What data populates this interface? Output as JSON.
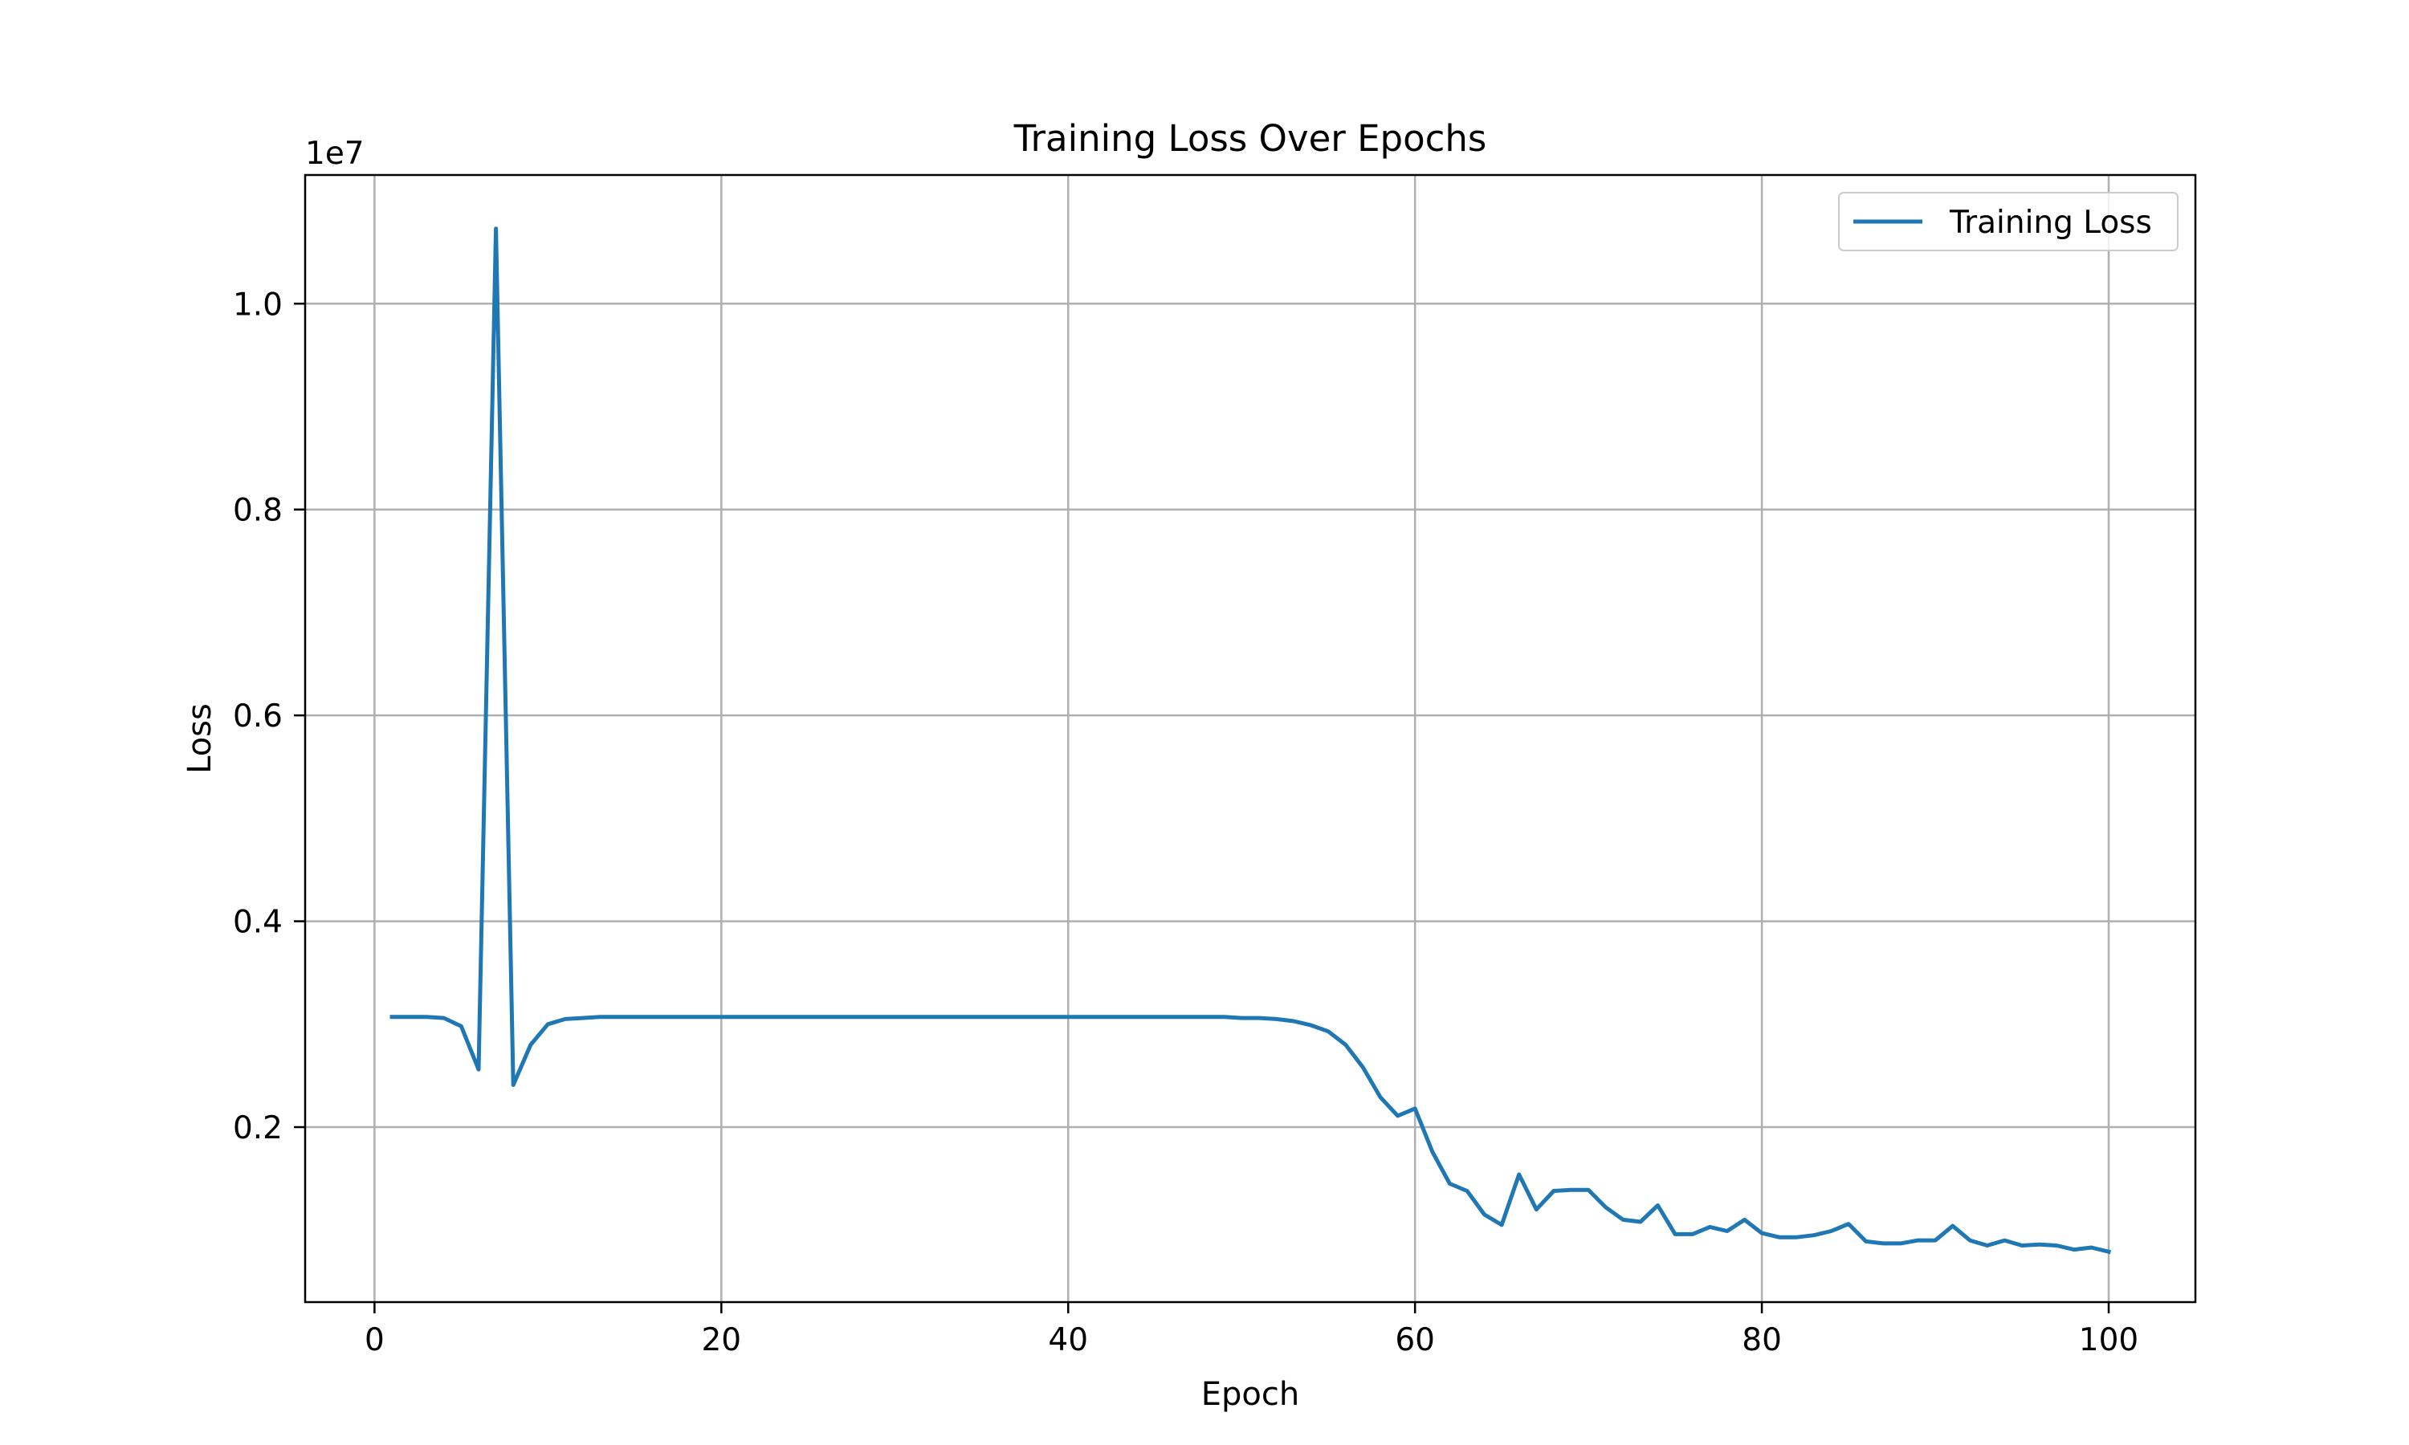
{
  "chart_data": {
    "type": "line",
    "title": "Training Loss Over Epochs",
    "xlabel": "Epoch",
    "ylabel": "Loss",
    "y_offset_label": "1e7",
    "xlim": [
      -4,
      105
    ],
    "ylim": [
      0.03,
      1.125
    ],
    "x_ticks": [
      0,
      20,
      40,
      60,
      80,
      100
    ],
    "x_tick_labels": [
      "0",
      "20",
      "40",
      "60",
      "80",
      "100"
    ],
    "y_ticks": [
      0.2,
      0.4,
      0.6,
      0.8,
      1.0
    ],
    "y_tick_labels": [
      "0.2",
      "0.4",
      "0.6",
      "0.8",
      "1.0"
    ],
    "grid": true,
    "legend": {
      "placement": "top-right",
      "entries": [
        "Training Loss"
      ]
    },
    "colors": {
      "series": "#1f77b4",
      "grid": "#b0b0b0",
      "axes": "#000000"
    },
    "series": [
      {
        "name": "Training Loss",
        "x": [
          1,
          2,
          3,
          4,
          5,
          6,
          7,
          8,
          9,
          10,
          11,
          12,
          13,
          14,
          15,
          16,
          17,
          18,
          19,
          20,
          21,
          22,
          23,
          24,
          25,
          26,
          27,
          28,
          29,
          30,
          31,
          32,
          33,
          34,
          35,
          36,
          37,
          38,
          39,
          40,
          41,
          42,
          43,
          44,
          45,
          46,
          47,
          48,
          49,
          50,
          51,
          52,
          53,
          54,
          55,
          56,
          57,
          58,
          59,
          60,
          61,
          62,
          63,
          64,
          65,
          66,
          67,
          68,
          69,
          70,
          71,
          72,
          73,
          74,
          75,
          76,
          77,
          78,
          79,
          80,
          81,
          82,
          83,
          84,
          85,
          86,
          87,
          88,
          89,
          90,
          91,
          92,
          93,
          94,
          95,
          96,
          97,
          98,
          99,
          100
        ],
        "values": [
          0.307,
          0.307,
          0.307,
          0.306,
          0.298,
          0.256,
          1.073,
          0.241,
          0.28,
          0.3,
          0.305,
          0.306,
          0.307,
          0.307,
          0.307,
          0.307,
          0.307,
          0.307,
          0.307,
          0.307,
          0.307,
          0.307,
          0.307,
          0.307,
          0.307,
          0.307,
          0.307,
          0.307,
          0.307,
          0.307,
          0.307,
          0.307,
          0.307,
          0.307,
          0.307,
          0.307,
          0.307,
          0.307,
          0.307,
          0.307,
          0.307,
          0.307,
          0.307,
          0.307,
          0.307,
          0.307,
          0.307,
          0.307,
          0.307,
          0.306,
          0.306,
          0.305,
          0.303,
          0.299,
          0.293,
          0.28,
          0.258,
          0.229,
          0.211,
          0.218,
          0.176,
          0.145,
          0.138,
          0.115,
          0.105,
          0.154,
          0.12,
          0.138,
          0.139,
          0.139,
          0.122,
          0.11,
          0.108,
          0.124,
          0.096,
          0.096,
          0.103,
          0.099,
          0.11,
          0.097,
          0.093,
          0.093,
          0.095,
          0.099,
          0.106,
          0.089,
          0.087,
          0.087,
          0.09,
          0.09,
          0.104,
          0.09,
          0.085,
          0.09,
          0.085,
          0.086,
          0.085,
          0.081,
          0.083,
          0.079
        ]
      }
    ]
  }
}
